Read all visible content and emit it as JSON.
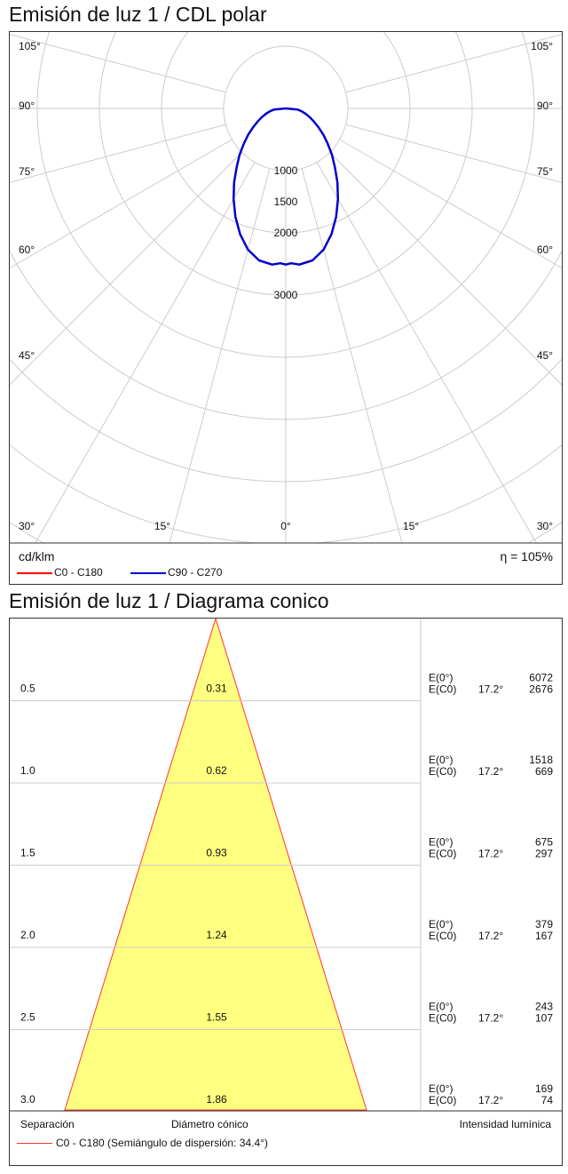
{
  "polar": {
    "title": "Emisión de luz 1 / CDL polar",
    "unit": "cd/klm",
    "efficiency": "η = 105%",
    "legend": [
      {
        "label": "C0 - C180",
        "color": "#ff0000"
      },
      {
        "label": "C90 - C270",
        "color": "#0000cc"
      }
    ]
  },
  "cone": {
    "title": "Emisión de luz 1 / Diagrama conico",
    "footer_separation": "Separación",
    "footer_diameter": "Diámetro cónico",
    "footer_intensity": "Intensidad lumínica",
    "legend_label": "C0 - C180 (Semiángulo de dispersión: 34.4°)",
    "legend_color": "#ff3333"
  },
  "chart_data": [
    {
      "type": "polar",
      "title": "Emisión de luz 1 / CDL polar",
      "unit": "cd/klm",
      "angle_labels_left": [
        "105°",
        "90°",
        "75°",
        "60°",
        "45°",
        "30°"
      ],
      "angle_labels_right": [
        "105°",
        "90°",
        "75°",
        "60°",
        "45°",
        "30°"
      ],
      "angle_labels_bottom": [
        "15°",
        "0°",
        "15°"
      ],
      "radial_labels": [
        "1000",
        "1500",
        "2000",
        "3000"
      ],
      "radial_values": [
        1000,
        1500,
        2000,
        3000
      ],
      "series": [
        {
          "name": "C90 - C270",
          "color": "#0000cc",
          "angles_deg": [
            0,
            2,
            5,
            10,
            15,
            20,
            25,
            30,
            35,
            40,
            45,
            50,
            55,
            60,
            65,
            70,
            75,
            80,
            85,
            90
          ],
          "values": [
            2510,
            2490,
            2520,
            2480,
            2350,
            2150,
            1920,
            1680,
            1450,
            1230,
            1050,
            880,
            740,
            610,
            500,
            410,
            330,
            255,
            190,
            0
          ]
        }
      ]
    },
    {
      "type": "cone",
      "title": "Emisión de luz 1 / Diagrama conico",
      "half_angle": "34.4°",
      "separation": [
        "0.5",
        "1.0",
        "1.5",
        "2.0",
        "2.5",
        "3.0"
      ],
      "diameter": [
        "0.31",
        "0.62",
        "0.93",
        "1.24",
        "1.55",
        "1.86"
      ],
      "e_label_center": "E(0°)",
      "e_label_side": "E(C0)",
      "side_angle": "17.2°",
      "e_center": [
        "6072",
        "1518",
        "675",
        "379",
        "243",
        "169"
      ],
      "e_side": [
        "2676",
        "669",
        "297",
        "167",
        "107",
        "74"
      ]
    }
  ]
}
